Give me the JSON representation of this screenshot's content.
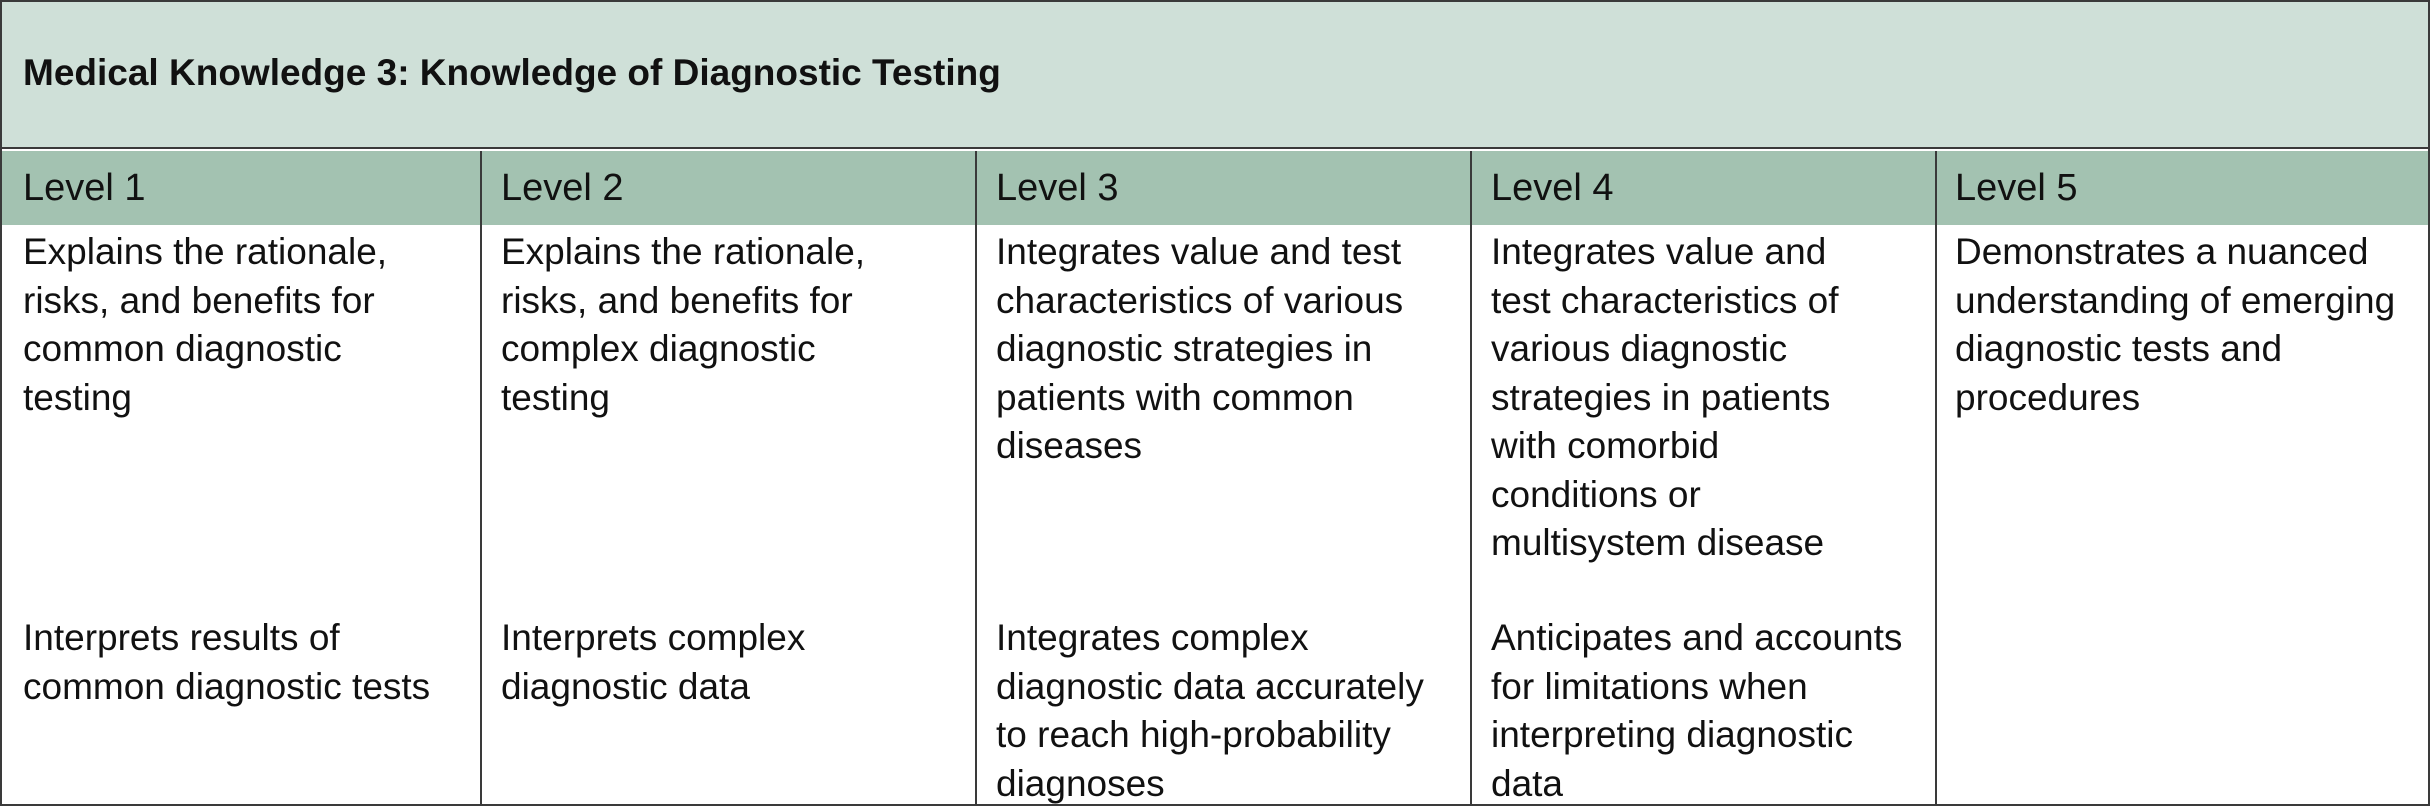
{
  "title": "Medical Knowledge 3: Knowledge of Diagnostic Testing",
  "levels": [
    "Level 1",
    "Level 2",
    "Level 3",
    "Level 4",
    "Level 5"
  ],
  "rows": [
    [
      "Explains the rationale, risks, and benefits for common diagnostic testing",
      "Explains the rationale, risks, and benefits for complex diagnostic testing",
      "Integrates value and test characteristics of various diagnostic strategies in patients with common diseases",
      "Integrates value and test characteristics of various diagnostic strategies in patients with comorbid conditions or multisystem disease",
      "Demonstrates a nuanced understanding of emerging diagnostic tests and procedures"
    ],
    [
      "Interprets results of common diagnostic tests",
      "Interprets complex diagnostic data",
      "Integrates complex diagnostic data accurately to reach high-probability diagnoses",
      "Anticipates and accounts for limitations when interpreting diagnostic data",
      ""
    ]
  ]
}
